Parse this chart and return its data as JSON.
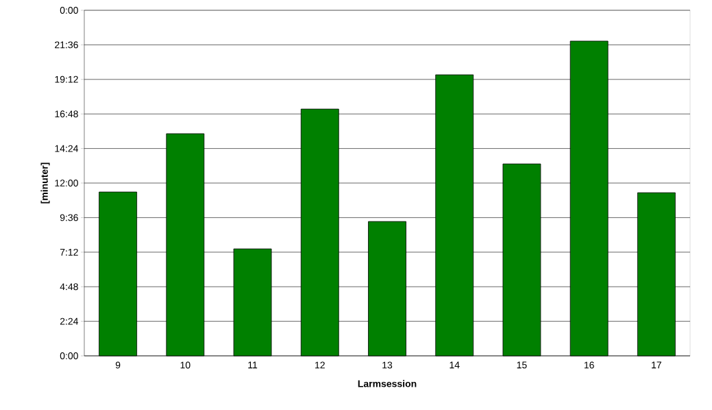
{
  "chart_data": {
    "type": "bar",
    "xlabel": "Larmsession",
    "ylabel": "[minuter]",
    "categories": [
      "9",
      "10",
      "11",
      "12",
      "13",
      "14",
      "15",
      "16",
      "17"
    ],
    "values": [
      11.38,
      15.43,
      7.43,
      17.14,
      9.33,
      19.52,
      13.33,
      21.86,
      11.33
    ],
    "color": "#008000",
    "ylim": [
      0,
      24
    ],
    "yticks": [
      {
        "value": 0,
        "label": "0:00"
      },
      {
        "value": 2.4,
        "label": "2:24"
      },
      {
        "value": 4.8,
        "label": "4:48"
      },
      {
        "value": 7.2,
        "label": "7:12"
      },
      {
        "value": 9.6,
        "label": "9:36"
      },
      {
        "value": 12,
        "label": "12:00"
      },
      {
        "value": 14.4,
        "label": "14:24"
      },
      {
        "value": 16.8,
        "label": "16:48"
      },
      {
        "value": 19.2,
        "label": "19:12"
      },
      {
        "value": 21.6,
        "label": "21:36"
      },
      {
        "value": 24,
        "label": "0:00"
      }
    ],
    "grid": "y"
  }
}
